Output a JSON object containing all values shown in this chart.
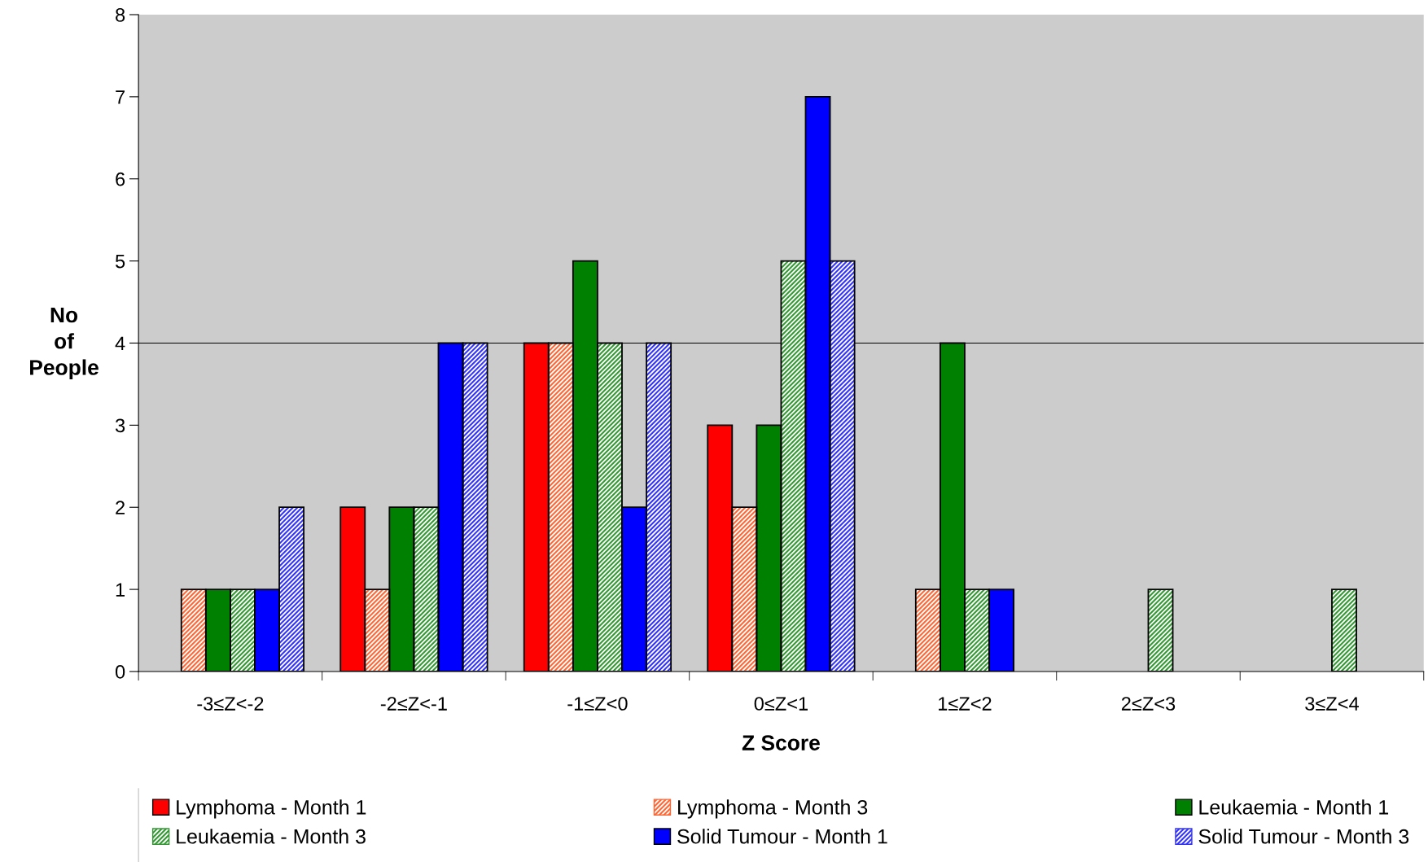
{
  "chart_data": {
    "type": "bar",
    "xlabel": "Z Score",
    "ylabel": "No\nof\nPeople",
    "categories": [
      "-3≤Z<-2",
      "-2≤Z<-1",
      "-1≤Z<0",
      "0≤Z<1",
      "1≤Z<2",
      "2≤Z<3",
      "3≤Z<4"
    ],
    "series": [
      {
        "name": "Lymphoma - Month 1",
        "color": "#ff0000",
        "values": [
          0,
          2,
          4,
          3,
          0,
          0,
          0
        ]
      },
      {
        "name": "Lymphoma - Month 3",
        "color": "#ff6633",
        "values": [
          1,
          1,
          4,
          2,
          1,
          0,
          0
        ]
      },
      {
        "name": "Leukaemia - Month 1",
        "color": "#008000",
        "values": [
          1,
          2,
          5,
          3,
          4,
          0,
          0
        ]
      },
      {
        "name": "Leukaemia - Month 3",
        "color": "#339933",
        "values": [
          1,
          2,
          4,
          5,
          1,
          1,
          1
        ]
      },
      {
        "name": "Solid Tumour - Month 1",
        "color": "#0000ff",
        "values": [
          1,
          4,
          2,
          7,
          1,
          0,
          0
        ]
      },
      {
        "name": "Solid Tumour - Month 3",
        "color": "#3333ff",
        "values": [
          2,
          4,
          4,
          5,
          0,
          0,
          0
        ]
      }
    ],
    "ylim": [
      0,
      8
    ],
    "yticks": [
      0,
      1,
      2,
      3,
      4,
      5,
      6,
      7,
      8
    ],
    "ref_lines": [
      {
        "axis": "y",
        "value": 4,
        "color": "#000000"
      }
    ],
    "grid": false,
    "legend": "bottom"
  }
}
